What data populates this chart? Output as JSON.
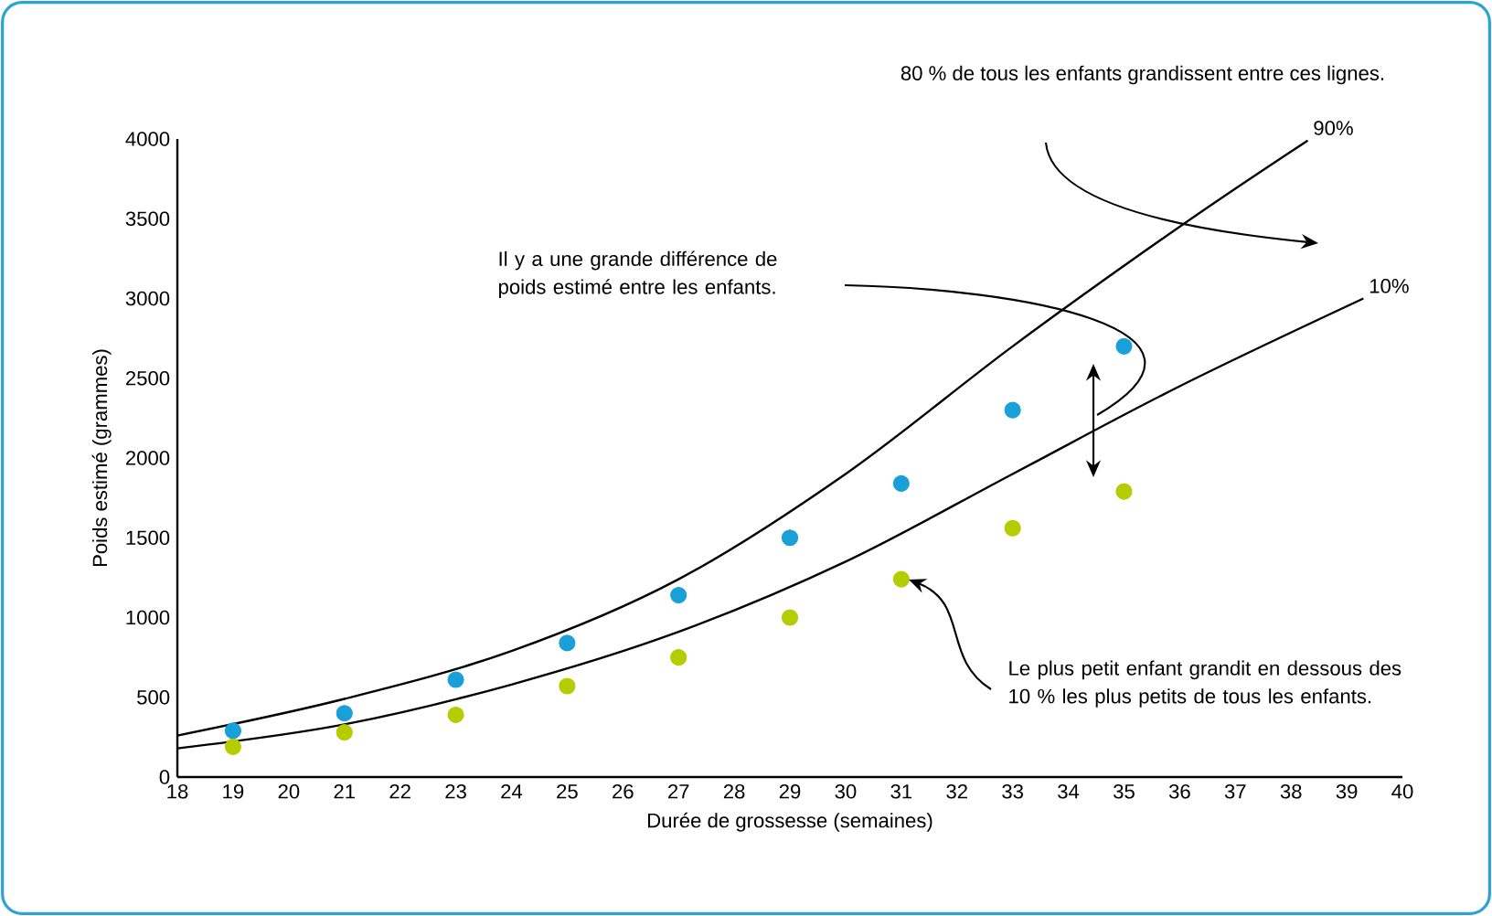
{
  "chart_data": {
    "type": "scatter",
    "xlabel": "Durée de grossesse (semaines)",
    "ylabel": "Poids estimé (grammes)",
    "xlim": [
      18,
      40
    ],
    "ylim": [
      0,
      4000
    ],
    "xticks": [
      18,
      19,
      20,
      21,
      22,
      23,
      24,
      25,
      26,
      27,
      28,
      29,
      30,
      31,
      32,
      33,
      34,
      35,
      36,
      37,
      38,
      39,
      40
    ],
    "yticks": [
      0,
      500,
      1000,
      1500,
      2000,
      2500,
      3000,
      3500,
      4000
    ],
    "grid": false,
    "legend": false,
    "annotations": [
      "80 % de tous les enfants grandissent entre ces lignes.",
      "Il y a une grande différence de poids estimé entre les enfants.",
      "Le plus petit enfant grandit en dessous des 10 % les plus petits de tous les enfants."
    ],
    "series": [
      {
        "color": "#1aa0d8",
        "marker": "circle",
        "x": [
          19,
          21,
          23,
          25,
          27,
          29,
          31,
          33,
          35
        ],
        "values": [
          290,
          400,
          610,
          840,
          1140,
          1500,
          1840,
          2300,
          2700
        ]
      },
      {
        "color": "#b5cc00",
        "marker": "circle",
        "x": [
          19,
          21,
          23,
          25,
          27,
          29,
          31,
          33,
          35
        ],
        "values": [
          190,
          280,
          390,
          570,
          750,
          1000,
          1240,
          1560,
          1790
        ]
      },
      {
        "type": "line",
        "name": "90%",
        "color": "#000000",
        "marker": "none",
        "line_style": "solid",
        "x": [
          18,
          21,
          24,
          27,
          30,
          33,
          36,
          38.3
        ],
        "values": [
          260,
          490,
          790,
          1240,
          1900,
          2700,
          3450,
          3990
        ]
      },
      {
        "type": "line",
        "name": "10%",
        "color": "#000000",
        "marker": "none",
        "line_style": "solid",
        "x": [
          18,
          21,
          24,
          27,
          30,
          33,
          36,
          39.3
        ],
        "values": [
          180,
          330,
          580,
          910,
          1350,
          1900,
          2450,
          3000
        ]
      }
    ]
  }
}
